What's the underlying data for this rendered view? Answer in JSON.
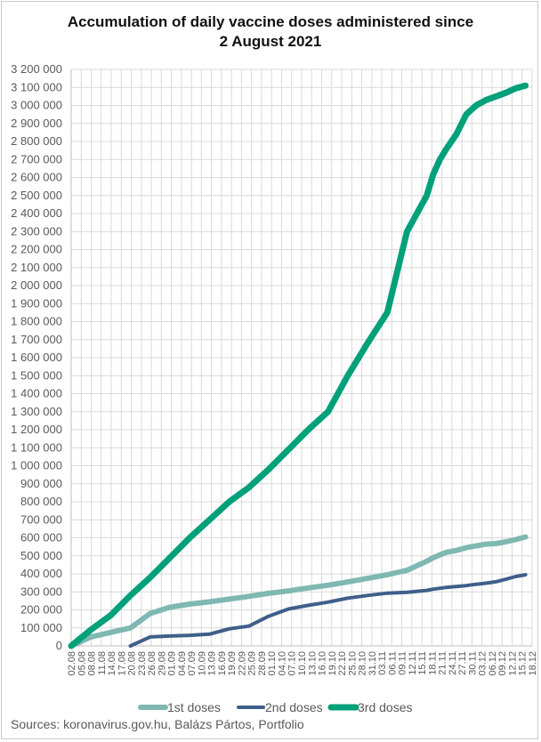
{
  "chart_data": {
    "type": "line",
    "title_line1": "Accumulation of daily vaccine doses administered since",
    "title_line2": "2 August 2021",
    "source": "Sources: koronavirus.gov.hu, Balázs Pártos, Portfolio",
    "ylim": [
      0,
      3200000
    ],
    "y_ticks": [
      "0",
      "100 000",
      "200 000",
      "300 000",
      "400 000",
      "500 000",
      "600 000",
      "700 000",
      "800 000",
      "900 000",
      "1 000 000",
      "1 100 000",
      "1 200 000",
      "1 300 000",
      "1 400 000",
      "1 500 000",
      "1 600 000",
      "1 700 000",
      "1 800 000",
      "1 900 000",
      "2 000 000",
      "2 100 000",
      "2 200 000",
      "2 300 000",
      "2 400 000",
      "2 500 000",
      "2 600 000",
      "2 700 000",
      "2 800 000",
      "2 900 000",
      "3 000 000",
      "3 100 000",
      "3 200 000"
    ],
    "x_ticks": [
      "02.08",
      "05.08",
      "08.08",
      "11.08",
      "14.08",
      "17.08",
      "20.08",
      "23.08",
      "26.08",
      "29.08",
      "01.09",
      "04.09",
      "07.09",
      "10.09",
      "13.09",
      "16.09",
      "19.09",
      "22.09",
      "25.09",
      "28.09",
      "01.10",
      "04.10",
      "07.10",
      "10.10",
      "13.10",
      "16.10",
      "19.10",
      "22.10",
      "25.10",
      "28.10",
      "31.10",
      "03.11",
      "06.11",
      "09.11",
      "12.11",
      "15.11",
      "18.11",
      "21.11",
      "24.11",
      "27.11",
      "30.11",
      "03.12",
      "06.12",
      "09.12",
      "12.12",
      "15.12",
      "18.12"
    ],
    "x_points": [
      0,
      6,
      12,
      18,
      24,
      30,
      36,
      42,
      48,
      54,
      60,
      66,
      72,
      78,
      84,
      90,
      96,
      102,
      108,
      110,
      112,
      114,
      117,
      120,
      123,
      126,
      129,
      132,
      135,
      138
    ],
    "legend_position": "bottom",
    "grid": true,
    "series": [
      {
        "name": "1st doses",
        "color": "#7fb8b2",
        "values": [
          0,
          50000,
          75000,
          100000,
          180000,
          215000,
          232000,
          245000,
          260000,
          275000,
          292000,
          305000,
          322000,
          337000,
          355000,
          375000,
          395000,
          420000,
          470000,
          490000,
          505000,
          520000,
          530000,
          545000,
          555000,
          565000,
          568000,
          578000,
          590000,
          605000
        ]
      },
      {
        "name": "2nd doses",
        "color": "#3f5f8a",
        "values": [
          null,
          null,
          null,
          0,
          50000,
          55000,
          59000,
          65000,
          95000,
          110000,
          165000,
          205000,
          225000,
          243000,
          265000,
          280000,
          293000,
          298000,
          308000,
          315000,
          320000,
          325000,
          330000,
          335000,
          342000,
          348000,
          356000,
          370000,
          385000,
          395000
        ]
      },
      {
        "name": "3rd doses",
        "color": "#00a07a",
        "values": [
          0,
          90000,
          170000,
          280000,
          380000,
          490000,
          600000,
          700000,
          800000,
          880000,
          980000,
          1090000,
          1200000,
          1300000,
          1500000,
          1680000,
          1850000,
          2300000,
          2500000,
          2620000,
          2700000,
          2760000,
          2840000,
          2950000,
          3000000,
          3030000,
          3050000,
          3070000,
          3095000,
          3110000
        ]
      }
    ]
  }
}
